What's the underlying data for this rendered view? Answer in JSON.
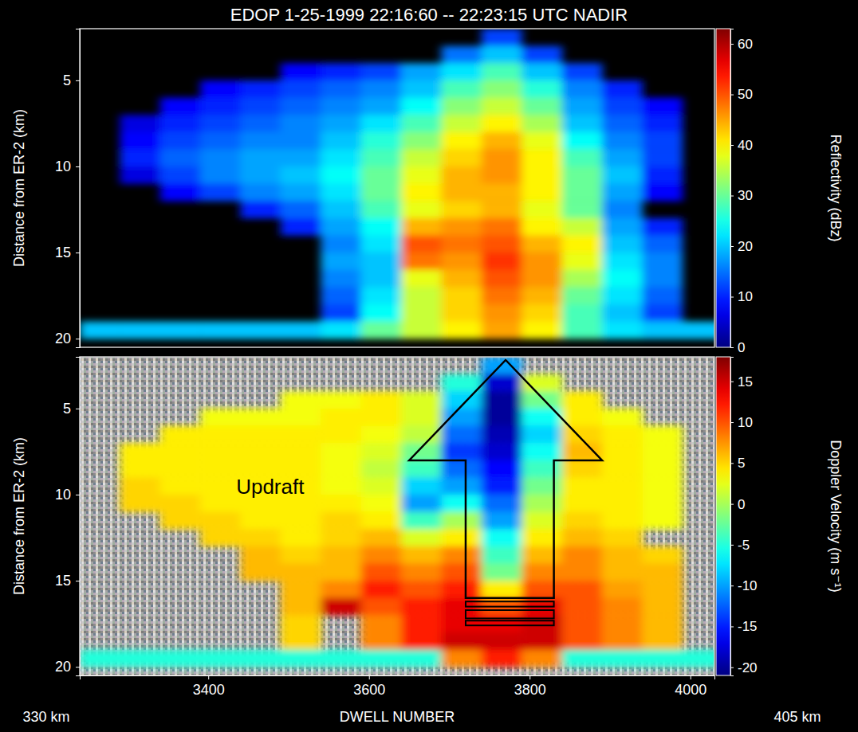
{
  "chart_data": [
    {
      "type": "heatmap",
      "title": "EDOP 1-25-1999  22:16:60 -- 22:23:15 UTC NADIR",
      "ylabel": "Distance from ER-2 (km)",
      "x": [
        3265,
        3315,
        3365,
        3415,
        3465,
        3515,
        3565,
        3615,
        3665,
        3715,
        3765,
        3815,
        3865,
        3915,
        3965,
        4015
      ],
      "y": [
        2.5,
        3.5,
        4.5,
        5.5,
        6.5,
        7.5,
        8.5,
        9.5,
        10.5,
        11.5,
        12.5,
        13.5,
        14.5,
        15.5,
        16.5,
        17.5,
        18.5,
        19.5
      ],
      "values": [
        [
          null,
          null,
          null,
          null,
          null,
          null,
          null,
          null,
          null,
          null,
          12,
          null,
          null,
          null,
          null,
          null
        ],
        [
          null,
          null,
          null,
          null,
          null,
          null,
          null,
          null,
          null,
          15,
          20,
          12,
          null,
          null,
          null,
          null
        ],
        [
          null,
          null,
          null,
          null,
          null,
          8,
          10,
          12,
          18,
          22,
          28,
          20,
          12,
          null,
          null,
          null
        ],
        [
          null,
          null,
          null,
          8,
          10,
          12,
          14,
          16,
          20,
          28,
          32,
          26,
          16,
          10,
          null,
          null
        ],
        [
          null,
          null,
          8,
          10,
          12,
          14,
          16,
          18,
          24,
          32,
          36,
          30,
          18,
          12,
          8,
          null
        ],
        [
          null,
          6,
          10,
          12,
          14,
          16,
          18,
          22,
          28,
          36,
          40,
          34,
          20,
          14,
          10,
          null
        ],
        [
          null,
          8,
          12,
          14,
          16,
          16,
          20,
          26,
          32,
          40,
          44,
          38,
          24,
          16,
          12,
          null
        ],
        [
          null,
          10,
          14,
          16,
          18,
          18,
          22,
          28,
          36,
          42,
          46,
          40,
          28,
          18,
          12,
          null
        ],
        [
          null,
          6,
          12,
          16,
          18,
          20,
          24,
          30,
          38,
          44,
          46,
          40,
          30,
          20,
          10,
          null
        ],
        [
          null,
          null,
          8,
          12,
          16,
          18,
          22,
          30,
          40,
          44,
          44,
          40,
          30,
          18,
          8,
          null
        ],
        [
          null,
          null,
          null,
          null,
          10,
          14,
          20,
          28,
          38,
          42,
          44,
          38,
          30,
          16,
          null,
          null
        ],
        [
          null,
          null,
          null,
          null,
          null,
          10,
          18,
          24,
          44,
          46,
          48,
          40,
          36,
          18,
          10,
          null
        ],
        [
          null,
          null,
          null,
          null,
          null,
          null,
          16,
          22,
          50,
          48,
          50,
          44,
          40,
          20,
          14,
          null
        ],
        [
          null,
          null,
          null,
          null,
          null,
          null,
          18,
          20,
          48,
          46,
          52,
          46,
          38,
          22,
          16,
          null
        ],
        [
          null,
          null,
          null,
          null,
          null,
          null,
          16,
          20,
          38,
          44,
          50,
          46,
          34,
          24,
          16,
          null
        ],
        [
          null,
          null,
          null,
          null,
          null,
          null,
          14,
          22,
          36,
          42,
          48,
          44,
          30,
          22,
          14,
          null
        ],
        [
          null,
          null,
          null,
          null,
          null,
          null,
          12,
          24,
          36,
          42,
          46,
          42,
          28,
          20,
          12,
          null
        ],
        [
          20,
          20,
          20,
          20,
          20,
          20,
          22,
          30,
          36,
          40,
          45,
          40,
          28,
          22,
          20,
          20
        ]
      ],
      "xlim": [
        3240,
        4030
      ],
      "ylim": [
        2,
        20.5
      ],
      "yticks": [
        5,
        10,
        15,
        20
      ],
      "tick_labels": "y",
      "colorbar": {
        "label": "Reflectivity (dBz)",
        "range": [
          0,
          63
        ],
        "ticks": [
          0,
          10,
          20,
          30,
          40,
          50,
          60
        ]
      }
    },
    {
      "type": "heatmap",
      "ylabel": "Distance from ER-2 (km)",
      "xlabel": "DWELL NUMBER",
      "x_end_labels": [
        "330 km",
        "405 km"
      ],
      "annotations": [
        "Updraft"
      ],
      "x": [
        3265,
        3315,
        3365,
        3415,
        3465,
        3515,
        3565,
        3615,
        3665,
        3715,
        3765,
        3815,
        3865,
        3915,
        3965,
        4015
      ],
      "y": [
        2.5,
        3.5,
        4.5,
        5.5,
        6.5,
        7.5,
        8.5,
        9.5,
        10.5,
        11.5,
        12.5,
        13.5,
        14.5,
        15.5,
        16.5,
        17.5,
        18.5,
        19.5
      ],
      "values": [
        [
          null,
          null,
          null,
          null,
          null,
          null,
          null,
          null,
          null,
          null,
          -10,
          null,
          null,
          null,
          null,
          null
        ],
        [
          null,
          null,
          null,
          null,
          null,
          null,
          null,
          null,
          null,
          -5,
          -18,
          2,
          null,
          null,
          null,
          null
        ],
        [
          null,
          null,
          null,
          null,
          null,
          3,
          3,
          4,
          2,
          -8,
          -20,
          -2,
          4,
          null,
          null,
          null
        ],
        [
          null,
          null,
          null,
          3,
          3,
          3,
          4,
          4,
          2,
          -10,
          -20,
          -6,
          4,
          3,
          null,
          null
        ],
        [
          null,
          null,
          4,
          4,
          4,
          4,
          4,
          3,
          1,
          -12,
          -19,
          -8,
          5,
          4,
          3,
          null
        ],
        [
          null,
          4,
          4,
          4,
          4,
          4,
          3,
          2,
          -2,
          -14,
          -18,
          -6,
          6,
          4,
          3,
          null
        ],
        [
          null,
          4,
          4,
          4,
          4,
          4,
          3,
          1,
          -4,
          -12,
          -16,
          -4,
          5,
          4,
          3,
          null
        ],
        [
          null,
          5,
          4,
          4,
          4,
          4,
          3,
          2,
          -8,
          -10,
          -15,
          -2,
          4,
          4,
          3,
          null
        ],
        [
          null,
          5,
          5,
          4,
          4,
          4,
          4,
          3,
          -10,
          -6,
          -12,
          0,
          4,
          4,
          3,
          null
        ],
        [
          null,
          null,
          5,
          5,
          4,
          4,
          5,
          4,
          -4,
          0,
          -10,
          2,
          5,
          4,
          3,
          null
        ],
        [
          null,
          null,
          null,
          5,
          5,
          4,
          5,
          6,
          2,
          4,
          -6,
          4,
          6,
          5,
          null,
          null
        ],
        [
          null,
          null,
          null,
          null,
          6,
          5,
          6,
          8,
          6,
          8,
          -4,
          6,
          8,
          6,
          5,
          null
        ],
        [
          null,
          null,
          null,
          null,
          6,
          6,
          6,
          10,
          8,
          10,
          -2,
          8,
          8,
          6,
          6,
          null
        ],
        [
          null,
          null,
          null,
          null,
          null,
          6,
          8,
          12,
          10,
          12,
          4,
          10,
          10,
          7,
          6,
          null
        ],
        [
          null,
          null,
          null,
          null,
          null,
          6,
          15,
          10,
          12,
          14,
          10,
          14,
          10,
          8,
          6,
          null
        ],
        [
          null,
          null,
          null,
          null,
          null,
          5,
          null,
          8,
          12,
          14,
          14,
          15,
          10,
          8,
          6,
          null
        ],
        [
          null,
          null,
          null,
          null,
          null,
          5,
          null,
          8,
          12,
          15,
          15,
          15,
          10,
          8,
          6,
          null
        ],
        [
          -5,
          -5,
          -5,
          -5,
          -5,
          -5,
          -5,
          -5,
          -5,
          8,
          12,
          8,
          -5,
          -5,
          -5,
          -5
        ]
      ],
      "xlim": [
        3240,
        4030
      ],
      "ylim": [
        2,
        20.5
      ],
      "xticks": [
        3400,
        3600,
        3800,
        4000
      ],
      "yticks": [
        5,
        10,
        15,
        20
      ],
      "colorbar": {
        "label": "Doppler Velocity (m s⁻¹)",
        "range": [
          -21,
          18
        ],
        "ticks": [
          -20,
          -15,
          -10,
          -5,
          0,
          5,
          10,
          15
        ]
      }
    }
  ]
}
